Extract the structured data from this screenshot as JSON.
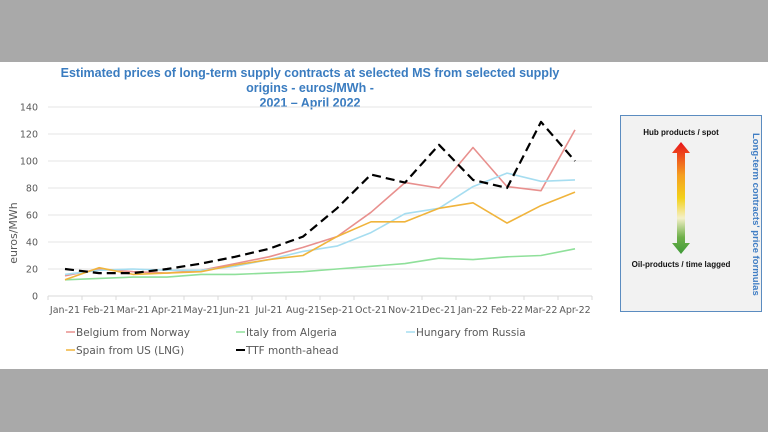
{
  "colors": {
    "background_band": "#a9a9a9",
    "title": "#3a7cc0",
    "panel_side_text": "#3f7dc4"
  },
  "chart_data": {
    "type": "line",
    "title": "Estimated prices of long-term supply contracts at selected MS from selected supply origins - euros/MWh - 2021 – April 2022",
    "title_lines": [
      "Estimated prices of long-term supply contracts at selected MS from selected supply origins - euros/MWh -",
      "2021 – April 2022"
    ],
    "xlabel": "",
    "ylabel": "euros/MWh",
    "ylim": [
      0,
      140
    ],
    "yticks": [
      0,
      20,
      40,
      60,
      80,
      100,
      120,
      140
    ],
    "grid": true,
    "legend_position": "bottom",
    "categories": [
      "Jan-21",
      "Feb-21",
      "Mar-21",
      "Apr-21",
      "May-21",
      "Jun-21",
      "Jul-21",
      "Aug-21",
      "Sep-21",
      "Oct-21",
      "Nov-21",
      "Dec-21",
      "Jan-22",
      "Feb-22",
      "Mar-22",
      "Apr-22"
    ],
    "series": [
      {
        "name": "Belgium from Norway",
        "color": "#e8908e",
        "dash": false,
        "values": [
          15,
          20,
          18,
          17,
          19,
          24,
          29,
          36,
          44,
          62,
          84,
          80,
          110,
          81,
          78,
          123
        ]
      },
      {
        "name": "Italy from Algeria",
        "color": "#8fe09a",
        "dash": false,
        "values": [
          12,
          13,
          14,
          14,
          16,
          16,
          17,
          18,
          20,
          22,
          24,
          28,
          27,
          29,
          30,
          35
        ]
      },
      {
        "name": "Hungary from Russia",
        "color": "#a6ddf0",
        "dash": false,
        "values": [
          16,
          19,
          20,
          19,
          19,
          22,
          27,
          33,
          37,
          47,
          61,
          65,
          81,
          91,
          85,
          86
        ]
      },
      {
        "name": "Spain from US (LNG)",
        "color": "#f0b43c",
        "dash": false,
        "values": [
          12,
          21,
          16,
          17,
          18,
          23,
          27,
          30,
          44,
          55,
          55,
          65,
          69,
          54,
          67,
          77
        ]
      },
      {
        "name": "TTF month-ahead",
        "color": "#000000",
        "dash": true,
        "values": [
          20,
          17,
          17,
          20,
          24,
          29,
          35,
          44,
          65,
          90,
          84,
          112,
          86,
          80,
          129,
          100
        ]
      }
    ]
  },
  "panel": {
    "top_label": "Hub products / spot",
    "bottom_label": "Oil-products / time lagged",
    "side_label": "Long-term contracts' price formulas",
    "arrow_icon": "gradient-double-arrow"
  }
}
